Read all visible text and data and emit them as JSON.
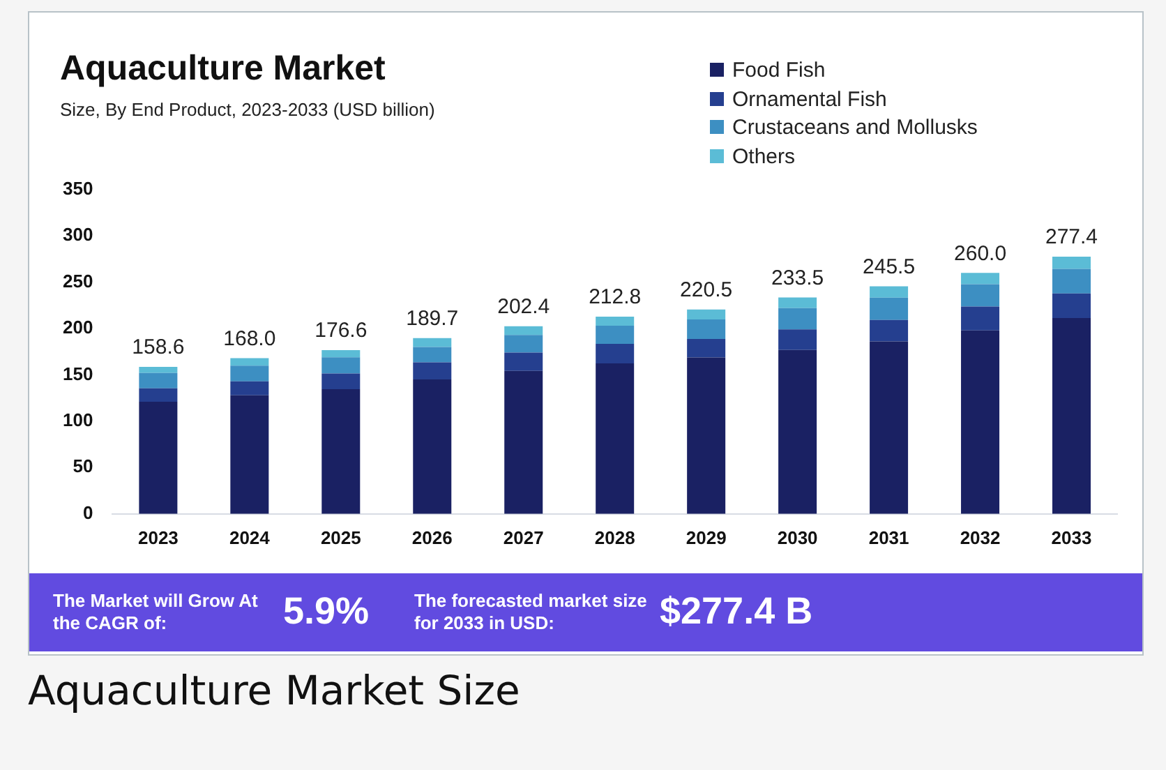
{
  "chart_data": {
    "type": "bar",
    "title": "Aquaculture Market",
    "subtitle": "Size, By End Product, 2023-2033 (USD billion)",
    "categories": [
      "2023",
      "2024",
      "2025",
      "2026",
      "2027",
      "2028",
      "2029",
      "2030",
      "2031",
      "2032",
      "2033"
    ],
    "series": [
      {
        "name": "Food Fish",
        "color": "#1a2163",
        "values": [
          121,
          128,
          134.6,
          145.1,
          154.2,
          162.3,
          168.7,
          176.8,
          186.0,
          198.0,
          211.2
        ]
      },
      {
        "name": "Ornamental Fish",
        "color": "#253f8f",
        "values": [
          14.5,
          15,
          16.9,
          18.3,
          19.8,
          21.1,
          20.0,
          22.3,
          23.2,
          25.6,
          26.6
        ]
      },
      {
        "name": "Crustaceans and Mollusks",
        "color": "#3d8fc2",
        "values": [
          16.5,
          17,
          17.4,
          16.7,
          19.0,
          19.6,
          21.0,
          22.9,
          24.1,
          24.2,
          26.5
        ]
      },
      {
        "name": "Others",
        "color": "#5bbcd6",
        "values": [
          6.6,
          8,
          7.7,
          9.6,
          9.4,
          9.8,
          10.8,
          11.5,
          12.2,
          12.2,
          13.1
        ]
      }
    ],
    "stacked": true,
    "ylim": [
      0,
      350
    ],
    "yticks": [
      0,
      50,
      100,
      150,
      200,
      250,
      300,
      350
    ],
    "grid": false,
    "legend": "top right",
    "totals": [
      "158.6",
      "168.0",
      "176.6",
      "189.7",
      "202.4",
      "212.8",
      "220.5",
      "233.5",
      "245.5",
      "260.0",
      "277.4"
    ],
    "annotations": [
      "The Market will Grow At the CAGR of:",
      "5.9%",
      "The forecasted market size for 2033 in USD:",
      "$277.4 B",
      "Aquaculture Market Size"
    ]
  }
}
